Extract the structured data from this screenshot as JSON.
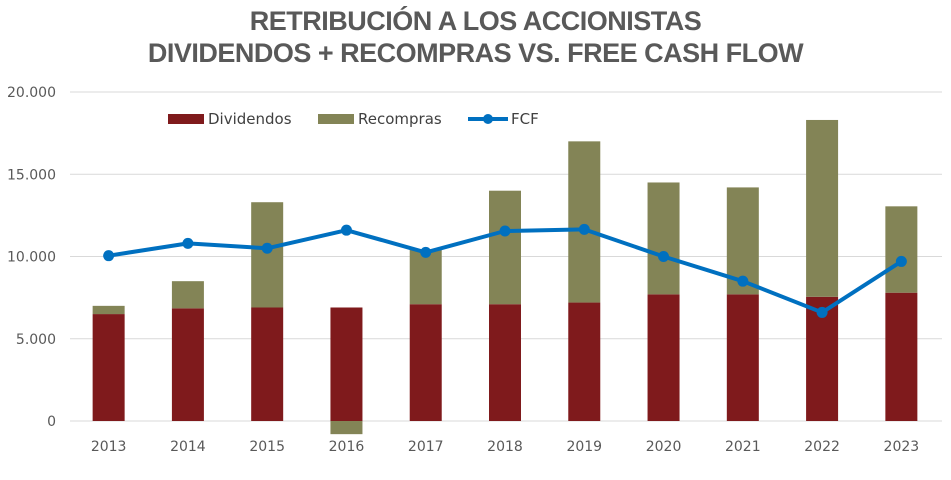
{
  "chart_data": {
    "type": "bar",
    "stacked": true,
    "title": "RETRIBUCIÓN A LOS ACCIONISTAS",
    "subtitle": "DIVIDENDOS + RECOMPRAS VS. FREE CASH FLOW",
    "xlabel": "",
    "ylabel": "",
    "categories": [
      "2013",
      "2014",
      "2015",
      "2016",
      "2017",
      "2018",
      "2019",
      "2020",
      "2021",
      "2022",
      "2023"
    ],
    "series": [
      {
        "name": "Dividendos",
        "kind": "bar",
        "color": "#7F1A1C",
        "values": [
          6500,
          6850,
          6900,
          6900,
          7100,
          7100,
          7200,
          7700,
          7700,
          7550,
          7800
        ]
      },
      {
        "name": "Recompras",
        "kind": "bar",
        "color": "#838456",
        "values": [
          500,
          1650,
          6400,
          -800,
          3300,
          6900,
          9800,
          6800,
          6500,
          10750,
          5250
        ]
      },
      {
        "name": "FCF",
        "kind": "line",
        "color": "#0070C0",
        "values": [
          10050,
          10800,
          10500,
          11600,
          10250,
          11550,
          11650,
          10000,
          8500,
          6600,
          9700
        ]
      }
    ],
    "ylim": [
      0,
      20000
    ],
    "yticks": [
      0,
      5000,
      10000,
      15000,
      20000
    ],
    "ytick_labels": [
      "0",
      "5.000",
      "10.000",
      "15.000",
      "20.000"
    ],
    "grid": true,
    "legend_position": "top-left"
  }
}
